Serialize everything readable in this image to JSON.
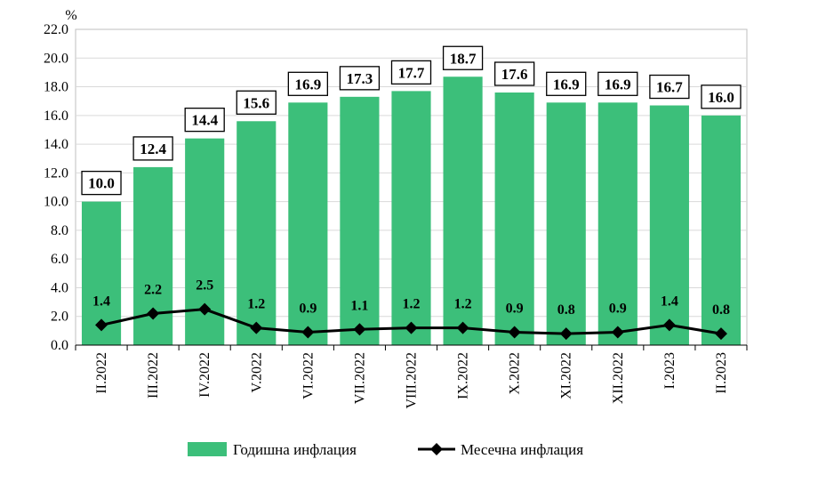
{
  "chart_data": {
    "type": "bar",
    "categories": [
      "II.2022",
      "III.2022",
      "IV.2022",
      "V.2022",
      "VI.2022",
      "VII.2022",
      "VIII.2022",
      "IX.2022",
      "X.2022",
      "XI.2022",
      "XII.2022",
      "I.2023",
      "II.2023"
    ],
    "series": [
      {
        "name": "Годишна инфлация",
        "type": "bar",
        "color": "#3cbf7a",
        "values": [
          10.0,
          12.4,
          14.4,
          15.6,
          16.9,
          17.3,
          17.7,
          18.7,
          17.6,
          16.9,
          16.9,
          16.7,
          16.0
        ]
      },
      {
        "name": "Месечна инфлация",
        "type": "line",
        "color": "#000000",
        "values": [
          1.4,
          2.2,
          2.5,
          1.2,
          0.9,
          1.1,
          1.2,
          1.2,
          0.9,
          0.8,
          0.9,
          1.4,
          0.8
        ]
      }
    ],
    "y_unit": "%",
    "ylim": [
      0,
      22
    ],
    "y_ticks": [
      "0.0",
      "2.0",
      "4.0",
      "6.0",
      "8.0",
      "10.0",
      "12.0",
      "14.0",
      "16.0",
      "18.0",
      "20.0",
      "22.0"
    ],
    "grid": true,
    "legend_position": "bottom"
  }
}
